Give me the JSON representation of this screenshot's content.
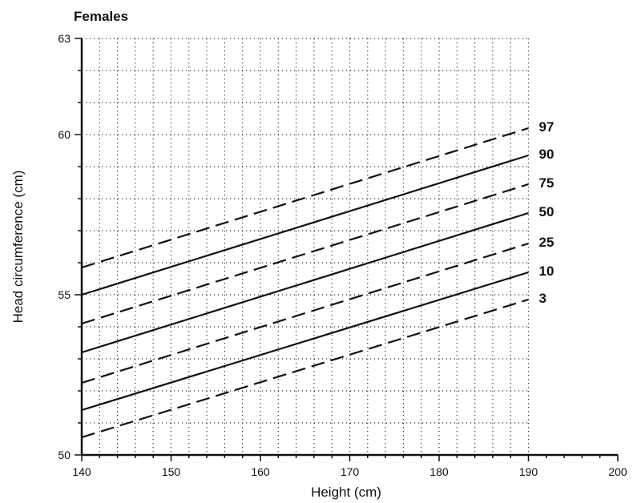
{
  "chart_data": {
    "type": "line",
    "title": "Females",
    "xlabel": "Height (cm)",
    "ylabel": "Head circumference (cm)",
    "xlim": [
      140,
      200
    ],
    "ylim": [
      50,
      63
    ],
    "x_ticks": [
      "140",
      "150",
      "160",
      "170",
      "180",
      "190",
      "200"
    ],
    "y_ticks": [
      "50",
      "55",
      "60",
      "63"
    ],
    "grid": true,
    "grid_x_range": [
      140,
      190
    ],
    "series": [
      {
        "name": "97",
        "x": [
          140,
          190
        ],
        "y": [
          55.85,
          60.2
        ],
        "style": "dashed"
      },
      {
        "name": "90",
        "x": [
          140,
          190
        ],
        "y": [
          55.0,
          59.35
        ],
        "style": "solid"
      },
      {
        "name": "75",
        "x": [
          140,
          190
        ],
        "y": [
          54.1,
          58.45
        ],
        "style": "dashed"
      },
      {
        "name": "50",
        "x": [
          140,
          190
        ],
        "y": [
          53.2,
          57.55
        ],
        "style": "solid"
      },
      {
        "name": "25",
        "x": [
          140,
          190
        ],
        "y": [
          52.25,
          56.6
        ],
        "style": "dashed"
      },
      {
        "name": "10",
        "x": [
          140,
          190
        ],
        "y": [
          51.4,
          55.7
        ],
        "style": "solid"
      },
      {
        "name": "3",
        "x": [
          140,
          190
        ],
        "y": [
          50.55,
          54.85
        ],
        "style": "dashed"
      }
    ]
  }
}
